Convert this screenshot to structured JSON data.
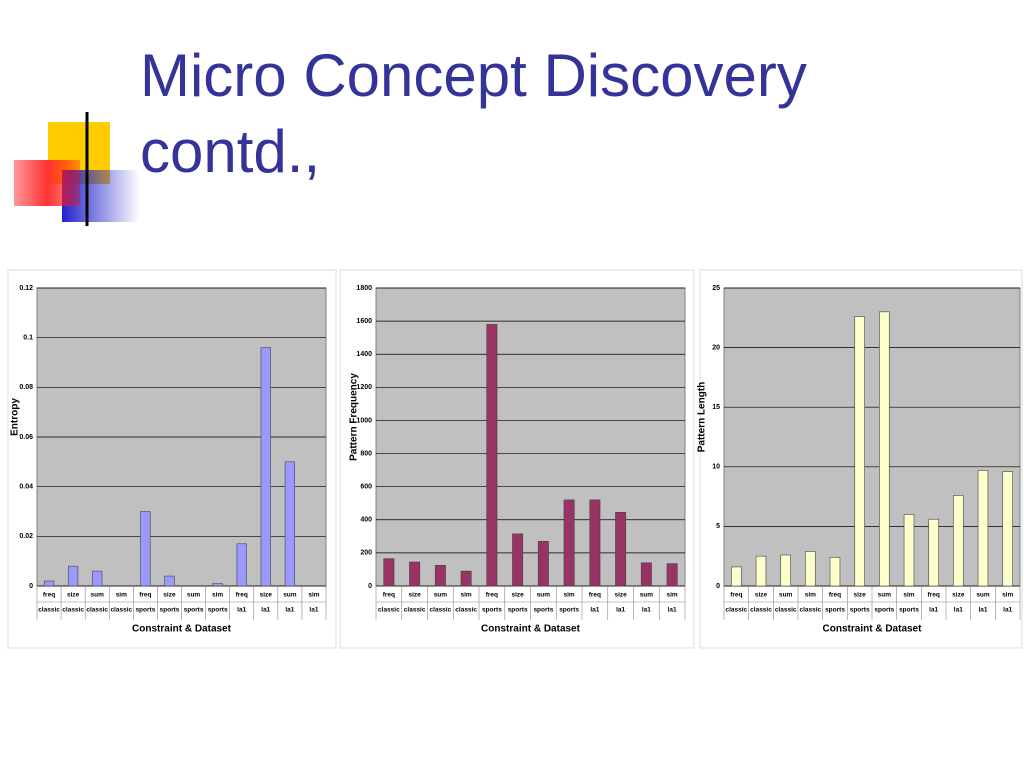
{
  "title": "Micro Concept Discovery contd.,",
  "chart_data": [
    {
      "type": "bar",
      "y_label": "Entropy",
      "x_label": "Constraint & Dataset",
      "color": "#9999ff",
      "categories": [
        "freq",
        "size",
        "sum",
        "sim",
        "freq",
        "size",
        "sum",
        "sim",
        "freq",
        "size",
        "sum",
        "sim"
      ],
      "datasets": [
        "classic",
        "classic",
        "classic",
        "classic",
        "sports",
        "sports",
        "sports",
        "sports",
        "la1",
        "la1",
        "la1",
        "la1"
      ],
      "values": [
        0.002,
        0.008,
        0.006,
        0,
        0.03,
        0.004,
        0,
        0.001,
        0.017,
        0.096,
        0.05,
        0
      ],
      "ylim": [
        0,
        0.12
      ],
      "yticks": [
        0,
        0.02,
        0.04,
        0.06,
        0.08,
        0.1,
        0.12
      ],
      "grid": true
    },
    {
      "type": "bar",
      "y_label": "Pattern Frequency",
      "x_label": "Constraint & Dataset",
      "color": "#993366",
      "categories": [
        "freq",
        "size",
        "sum",
        "sim",
        "freq",
        "size",
        "sum",
        "sim",
        "freq",
        "size",
        "sum",
        "sim"
      ],
      "datasets": [
        "classic",
        "classic",
        "classic",
        "classic",
        "sports",
        "sports",
        "sports",
        "sports",
        "la1",
        "la1",
        "la1",
        "la1"
      ],
      "values": [
        165,
        145,
        125,
        90,
        1580,
        315,
        270,
        520,
        520,
        445,
        140,
        135
      ],
      "ylim": [
        0,
        1800
      ],
      "yticks": [
        0,
        200,
        400,
        600,
        800,
        1000,
        1200,
        1400,
        1600,
        1800
      ],
      "grid": true
    },
    {
      "type": "bar",
      "y_label": "Pattern Length",
      "x_label": "Constraint & Dataset",
      "color": "#ffffcc",
      "categories": [
        "freq",
        "size",
        "sum",
        "sim",
        "freq",
        "size",
        "sum",
        "sim",
        "freq",
        "size",
        "sum",
        "sim"
      ],
      "datasets": [
        "classic",
        "classic",
        "classic",
        "classic",
        "sports",
        "sports",
        "sports",
        "sports",
        "la1",
        "la1",
        "la1",
        "la1"
      ],
      "values": [
        1.6,
        2.5,
        2.6,
        2.9,
        2.4,
        22.6,
        23.0,
        6.0,
        5.6,
        7.6,
        9.7,
        9.6
      ],
      "ylim": [
        0,
        25
      ],
      "yticks": [
        0,
        5,
        10,
        15,
        20,
        25
      ],
      "grid": true
    }
  ]
}
